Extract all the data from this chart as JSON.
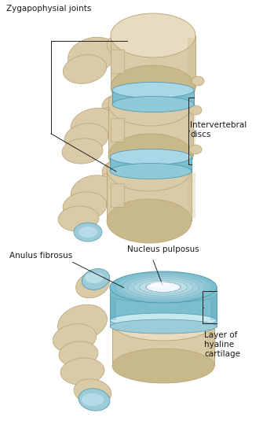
{
  "background_color": "#ffffff",
  "figure_width": 3.35,
  "figure_height": 5.58,
  "dpi": 100,
  "bone_color": "#d9cba8",
  "bone_mid": "#c8b98a",
  "bone_dark": "#b8a070",
  "bone_light": "#e8dcc0",
  "disc_color": "#7bbfcf",
  "disc_light": "#a8d8e8",
  "disc_dark": "#5599b0",
  "disc_mid": "#8ecad8",
  "joint_blue": "#9bccd8",
  "joint_light": "#c8e8f0",
  "nucleus_white": "#e8f4f8",
  "nucleus_mid": "#d0eaf5",
  "ring_line": "#88b8cc",
  "text_color": "#1a1a1a",
  "line_color": "#222222",
  "line_width": 0.7,
  "font_size": 7.5,
  "label_zyg": "Zygapophysial joints",
  "label_inter": "Intervertebral\ndiscs",
  "label_anulus": "Anulus fibrosus",
  "label_nucleus": "Nucleus pulposus",
  "label_hyaline": "Layer of\nhyaline\ncartilage"
}
